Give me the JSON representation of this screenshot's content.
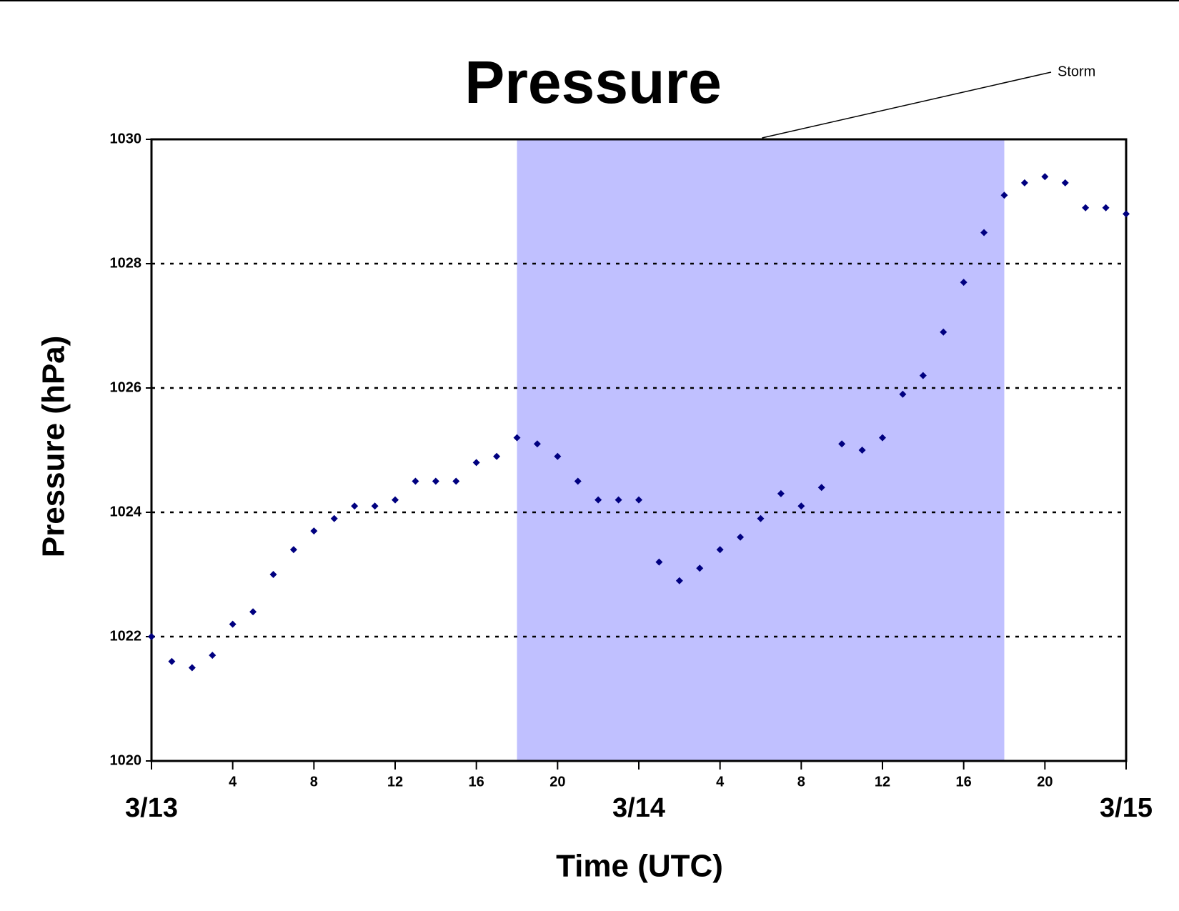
{
  "chart_data": {
    "type": "scatter",
    "title": "Pressure",
    "x_label": "Time (UTC)",
    "y_label": "Pressure (hPa)",
    "x": [
      0,
      1,
      2,
      3,
      4,
      5,
      6,
      7,
      8,
      9,
      10,
      11,
      12,
      13,
      14,
      15,
      16,
      17,
      18,
      19,
      20,
      21,
      22,
      23,
      24,
      25,
      26,
      27,
      28,
      29,
      30,
      31,
      32,
      33,
      34,
      35,
      36,
      37,
      38,
      39,
      40,
      41,
      42,
      43,
      44,
      45,
      46,
      47,
      48
    ],
    "series": [
      {
        "name": "Pressure",
        "color": "#000080",
        "values": [
          1022.0,
          1021.6,
          1021.5,
          1021.7,
          1022.2,
          1022.4,
          1023.0,
          1023.4,
          1023.7,
          1023.9,
          1024.1,
          1024.1,
          1024.2,
          1024.5,
          1024.5,
          1024.5,
          1024.8,
          1024.9,
          1025.2,
          1025.1,
          1024.9,
          1024.5,
          1024.2,
          1024.2,
          1024.2,
          1023.2,
          1022.9,
          1023.1,
          1023.4,
          1023.6,
          1023.9,
          1024.3,
          1024.1,
          1024.4,
          1025.1,
          1025.0,
          1025.2,
          1025.9,
          1026.2,
          1026.9,
          1027.7,
          1028.5,
          1029.1,
          1029.3,
          1029.4,
          1029.3,
          1028.9,
          1028.9,
          1028.8
        ]
      }
    ],
    "xlim": [
      0,
      48
    ],
    "xticks": [
      {
        "value": 0,
        "label": "3/13"
      },
      4,
      8,
      12,
      16,
      20,
      {
        "value": 24,
        "label": "3/14"
      },
      {
        "value": 28,
        "label": "4"
      },
      {
        "value": 32,
        "label": "8"
      },
      {
        "value": 36,
        "label": "12"
      },
      {
        "value": 40,
        "label": "16"
      },
      {
        "value": 44,
        "label": "20"
      },
      {
        "value": 48,
        "label": "3/15"
      }
    ],
    "ylim": [
      1020,
      1030
    ],
    "yticks": [
      1020,
      1022,
      1024,
      1026,
      1028,
      1030
    ],
    "grid": true,
    "shade": {
      "x": [
        18,
        42
      ],
      "color": "#c0c0ff",
      "label": "Storm"
    }
  }
}
